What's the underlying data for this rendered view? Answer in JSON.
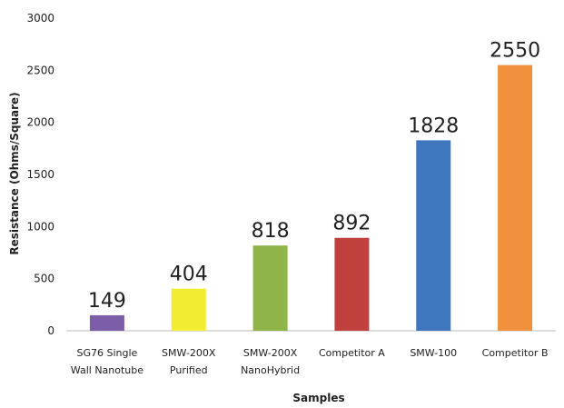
{
  "chart_data": {
    "type": "bar",
    "title": "",
    "xlabel": "Samples",
    "ylabel": "Resistance (Ohms/Square)",
    "ylim": [
      0,
      3000
    ],
    "yticks": [
      "0",
      "500",
      "1000",
      "1500",
      "2000",
      "2500",
      "3000"
    ],
    "grid": false,
    "legend": "none",
    "categories": [
      [
        "SG76 Single",
        "Wall Nanotube"
      ],
      [
        "SMW-200X",
        "Purified"
      ],
      [
        "SMW-200X",
        "NanoHybrid"
      ],
      [
        "Competitor A"
      ],
      [
        "SMW-100"
      ],
      [
        "Competitor B"
      ]
    ],
    "values": [
      149,
      404,
      818,
      892,
      1828,
      2550
    ],
    "data_labels": [
      "149",
      "404",
      "818",
      "892",
      "1828",
      "2550"
    ],
    "colors": [
      "#7b5ea7",
      "#f2ec33",
      "#8fb447",
      "#c0403d",
      "#3f77bf",
      "#f2913d"
    ]
  }
}
